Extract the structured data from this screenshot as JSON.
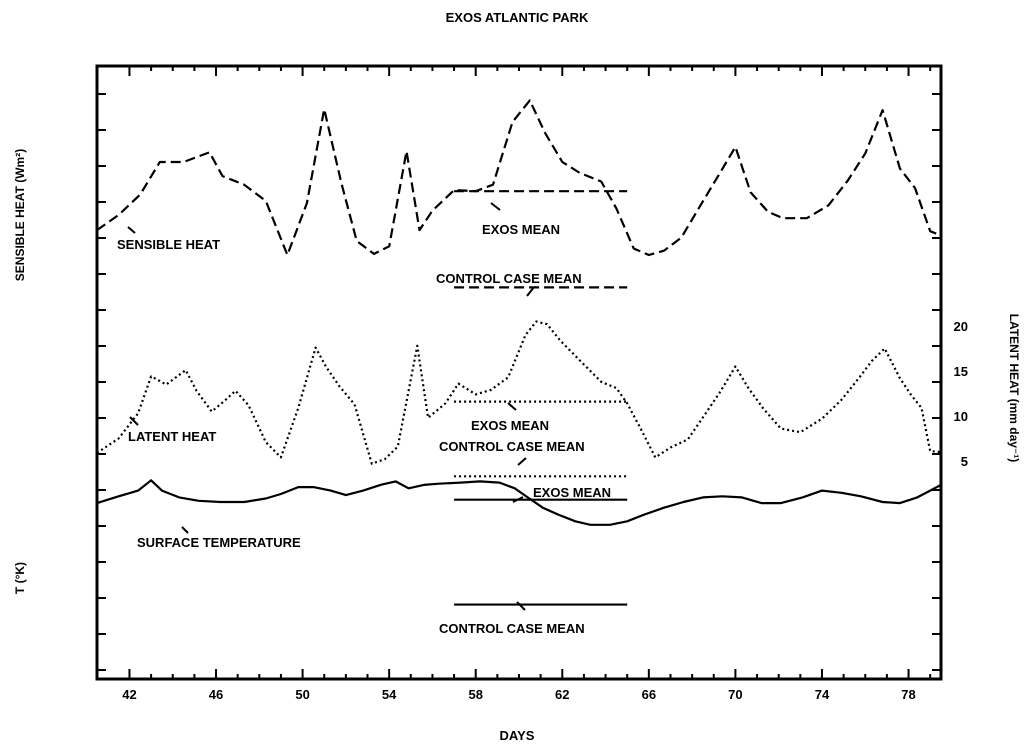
{
  "chart_data": {
    "type": "line",
    "title": "EXOS ATLANTIC PARK",
    "xlabel": "DAYS",
    "ylabel_left_top": "SENSIBLE HEAT (Wm²)",
    "ylabel_left_bottom": "T (°K)",
    "ylabel_right": "LATENT HEAT (mm day⁻¹)",
    "x_ticks": [
      "42",
      "46",
      "50",
      "54",
      "58",
      "62",
      "66",
      "70",
      "74",
      "78"
    ],
    "x_tick_values": [
      42,
      46,
      50,
      54,
      58,
      62,
      66,
      70,
      74,
      78
    ],
    "xlim": [
      40.5,
      79.5
    ],
    "latent_axis": {
      "ticks": [
        "5",
        "10",
        "15",
        "20"
      ],
      "tick_values": [
        5,
        10,
        15,
        20
      ]
    },
    "series": [
      {
        "name": "SENSIBLE HEAT",
        "style": "dashed",
        "x": [
          40.5,
          41.5,
          42.5,
          43.4,
          44.5,
          45.7,
          46.3,
          47.3,
          48.3,
          49.3,
          50.2,
          51.0,
          51.8,
          52.5,
          53.3,
          54.0,
          54.8,
          55.4,
          56.0,
          57.0,
          58.0,
          58.8,
          59.7,
          60.5,
          61.2,
          62.0,
          62.8,
          63.8,
          64.5,
          65.3,
          66.0,
          66.7,
          67.5,
          68.3,
          69.2,
          70.0,
          70.7,
          71.5,
          72.2,
          73.3,
          74.3,
          75.2,
          76.0,
          76.8,
          77.6,
          78.3,
          79.0,
          79.5
        ],
        "y": [
          85,
          99,
          118,
          148,
          148,
          157,
          135,
          127,
          112,
          62,
          110,
          197,
          128,
          75,
          63,
          70,
          158,
          85,
          103,
          122,
          121,
          127,
          185,
          205,
          175,
          148,
          138,
          130,
          105,
          68,
          62,
          66,
          78,
          105,
          135,
          162,
          120,
          102,
          96,
          96,
          108,
          131,
          156,
          196,
          142,
          124,
          84,
          80
        ]
      },
      {
        "name": "LATENT HEAT",
        "style": "dotted",
        "x": [
          40.5,
          41.5,
          42.4,
          43.0,
          43.7,
          44.6,
          45.1,
          45.8,
          46.4,
          46.9,
          47.5,
          48.3,
          49.0,
          49.8,
          50.6,
          51.1,
          51.7,
          52.4,
          53.2,
          53.8,
          54.4,
          54.8,
          55.3,
          55.8,
          56.6,
          57.2,
          58.0,
          58.7,
          59.5,
          60.3,
          60.8,
          61.3,
          61.9,
          62.8,
          63.8,
          64.5,
          65.0,
          65.6,
          66.3,
          67.0,
          67.8,
          68.6,
          69.3,
          70.0,
          70.6,
          71.3,
          72.1,
          73.0,
          74.0,
          74.9,
          75.7,
          76.3,
          76.9,
          77.6,
          78.1,
          78.6,
          79.0,
          79.5
        ],
        "y": [
          5.9,
          7.5,
          10.3,
          14.4,
          13.5,
          15.1,
          12.8,
          10.5,
          11.7,
          12.8,
          11.2,
          7.1,
          5.4,
          10.9,
          17.6,
          15.4,
          13.3,
          11.3,
          4.7,
          5.2,
          6.6,
          11.6,
          17.8,
          9.8,
          11.4,
          13.6,
          12.4,
          12.9,
          14.3,
          19.0,
          20.5,
          20.2,
          18.4,
          16.2,
          13.8,
          13.1,
          11.4,
          8.7,
          5.4,
          6.5,
          7.4,
          10.2,
          12.7,
          15.5,
          13.1,
          10.8,
          8.6,
          8.2,
          9.7,
          11.8,
          14.2,
          16.1,
          17.5,
          14.2,
          12.4,
          10.9,
          6.1,
          6.0
        ]
      },
      {
        "name": "SURFACE TEMPERATURE",
        "style": "solid",
        "x": [
          40.5,
          41.5,
          42.4,
          43.0,
          43.5,
          44.3,
          45.2,
          46.2,
          47.3,
          48.3,
          49.0,
          49.8,
          50.5,
          51.3,
          52.0,
          52.8,
          53.6,
          54.3,
          54.9,
          55.6,
          56.3,
          57.3,
          58.2,
          59.1,
          59.8,
          60.4,
          61.1,
          61.8,
          62.6,
          63.3,
          64.2,
          65.0,
          65.8,
          66.7,
          67.6,
          68.5,
          69.4,
          70.3,
          71.2,
          72.1,
          73.1,
          74.0,
          74.9,
          75.8,
          76.8,
          77.6,
          78.4,
          79.0,
          79.5
        ],
        "y": [
          288.5,
          289.1,
          289.6,
          290.5,
          289.6,
          289.0,
          288.7,
          288.6,
          288.6,
          288.9,
          289.3,
          289.9,
          289.9,
          289.6,
          289.2,
          289.6,
          290.1,
          290.4,
          289.8,
          290.1,
          290.2,
          290.3,
          290.4,
          290.3,
          289.8,
          289.0,
          288.1,
          287.5,
          286.9,
          286.6,
          286.6,
          286.9,
          287.5,
          288.1,
          288.6,
          289.0,
          289.1,
          289.0,
          288.5,
          288.5,
          289.0,
          289.6,
          289.4,
          289.1,
          288.6,
          288.5,
          289.0,
          289.6,
          290.1
        ]
      }
    ],
    "mean_lines": [
      {
        "label": "EXOS MEAN",
        "series": "SENSIBLE HEAT",
        "style": "dashed",
        "x_range": [
          57.0,
          65.0
        ],
        "value": 121
      },
      {
        "label": "CONTROL CASE MEAN",
        "series": "SENSIBLE HEAT",
        "style": "dashed",
        "x_range": [
          57.0,
          65.0
        ],
        "value": 32
      },
      {
        "label": "EXOS MEAN",
        "series": "LATENT HEAT",
        "style": "dotted",
        "x_range": [
          57.0,
          65.0
        ],
        "value": 11.6
      },
      {
        "label": "CONTROL CASE MEAN",
        "series": "LATENT HEAT",
        "style": "dotted",
        "x_range": [
          57.0,
          65.0
        ],
        "value": 3.3
      },
      {
        "label": "EXOS MEAN",
        "series": "SURFACE TEMPERATURE",
        "style": "solid",
        "x_range": [
          57.0,
          65.0
        ],
        "value": 288.8
      },
      {
        "label": "CONTROL CASE MEAN",
        "series": "SURFACE TEMPERATURE",
        "style": "solid",
        "x_range": [
          57.0,
          65.0
        ],
        "value": 279.6
      }
    ],
    "grid": false,
    "legend": "none"
  }
}
